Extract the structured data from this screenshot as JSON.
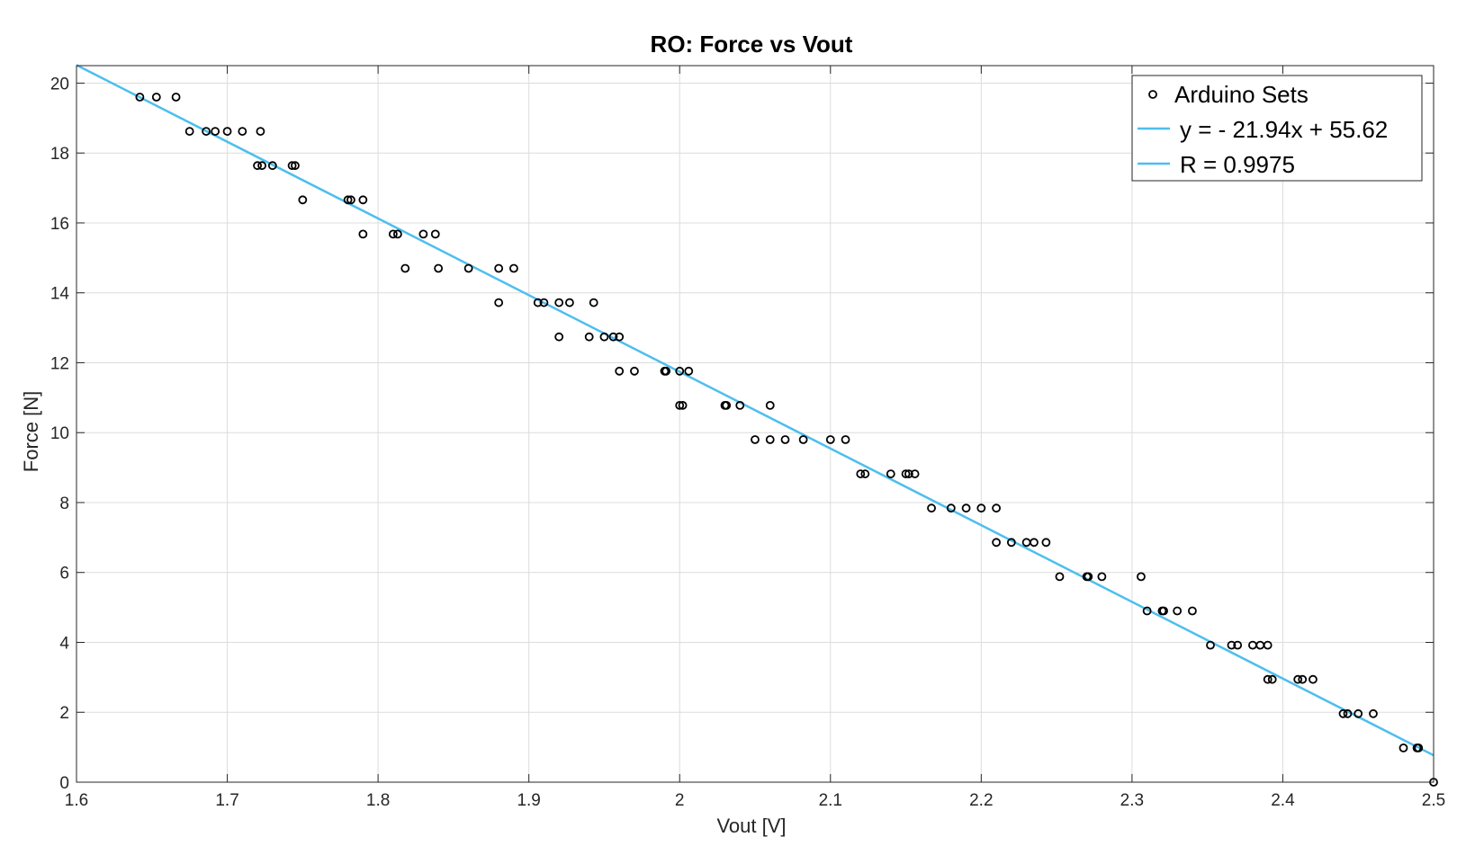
{
  "chart_data": {
    "type": "scatter",
    "title": "RO: Force vs Vout",
    "xlabel": "Vout [V]",
    "ylabel": "Force [N]",
    "xlim": [
      1.6,
      2.5
    ],
    "ylim": [
      0,
      20.5
    ],
    "xticks": [
      1.6,
      1.7,
      1.8,
      1.9,
      2.0,
      2.1,
      2.2,
      2.3,
      2.4,
      2.5
    ],
    "xtick_labels": [
      "1.6",
      "1.7",
      "1.8",
      "1.9",
      "2",
      "2.1",
      "2.2",
      "2.3",
      "2.4",
      "2.5"
    ],
    "yticks": [
      0,
      2,
      4,
      6,
      8,
      10,
      12,
      14,
      16,
      18,
      20
    ],
    "ytick_labels": [
      "0",
      "2",
      "4",
      "6",
      "8",
      "10",
      "12",
      "14",
      "16",
      "18",
      "20"
    ],
    "grid": true,
    "legend_position": "top-right",
    "colors": {
      "points": "#000000",
      "fit": "#4dbeee",
      "axes": "#262626",
      "grid": "#dcdcdc"
    },
    "series": [
      {
        "name": "Arduino Sets",
        "kind": "scatter",
        "points": [
          [
            1.642,
            19.6
          ],
          [
            1.653,
            19.6
          ],
          [
            1.666,
            19.6
          ],
          [
            1.675,
            18.62
          ],
          [
            1.686,
            18.62
          ],
          [
            1.692,
            18.62
          ],
          [
            1.7,
            18.62
          ],
          [
            1.71,
            18.62
          ],
          [
            1.722,
            18.62
          ],
          [
            1.72,
            17.64
          ],
          [
            1.723,
            17.64
          ],
          [
            1.73,
            17.64
          ],
          [
            1.743,
            17.64
          ],
          [
            1.745,
            17.64
          ],
          [
            1.75,
            16.66
          ],
          [
            1.78,
            16.66
          ],
          [
            1.782,
            16.66
          ],
          [
            1.79,
            16.66
          ],
          [
            1.79,
            15.68
          ],
          [
            1.81,
            15.68
          ],
          [
            1.813,
            15.68
          ],
          [
            1.83,
            15.68
          ],
          [
            1.838,
            15.68
          ],
          [
            1.818,
            14.7
          ],
          [
            1.84,
            14.7
          ],
          [
            1.86,
            14.7
          ],
          [
            1.88,
            14.7
          ],
          [
            1.89,
            14.7
          ],
          [
            1.88,
            13.72
          ],
          [
            1.906,
            13.72
          ],
          [
            1.91,
            13.72
          ],
          [
            1.92,
            13.72
          ],
          [
            1.927,
            13.72
          ],
          [
            1.943,
            13.72
          ],
          [
            1.92,
            12.74
          ],
          [
            1.94,
            12.74
          ],
          [
            1.95,
            12.74
          ],
          [
            1.956,
            12.74
          ],
          [
            1.96,
            12.74
          ],
          [
            1.96,
            11.76
          ],
          [
            1.97,
            11.76
          ],
          [
            1.99,
            11.76
          ],
          [
            1.991,
            11.76
          ],
          [
            2.0,
            11.76
          ],
          [
            2.006,
            11.76
          ],
          [
            2.0,
            10.78
          ],
          [
            2.002,
            10.78
          ],
          [
            2.03,
            10.78
          ],
          [
            2.031,
            10.78
          ],
          [
            2.04,
            10.78
          ],
          [
            2.06,
            10.78
          ],
          [
            2.05,
            9.8
          ],
          [
            2.06,
            9.8
          ],
          [
            2.07,
            9.8
          ],
          [
            2.082,
            9.8
          ],
          [
            2.1,
            9.8
          ],
          [
            2.11,
            9.8
          ],
          [
            2.12,
            8.82
          ],
          [
            2.123,
            8.82
          ],
          [
            2.14,
            8.82
          ],
          [
            2.15,
            8.82
          ],
          [
            2.152,
            8.82
          ],
          [
            2.156,
            8.82
          ],
          [
            2.167,
            7.84
          ],
          [
            2.18,
            7.84
          ],
          [
            2.19,
            7.84
          ],
          [
            2.2,
            7.84
          ],
          [
            2.21,
            7.84
          ],
          [
            2.21,
            6.86
          ],
          [
            2.22,
            6.86
          ],
          [
            2.23,
            6.86
          ],
          [
            2.235,
            6.86
          ],
          [
            2.243,
            6.86
          ],
          [
            2.252,
            5.88
          ],
          [
            2.27,
            5.88
          ],
          [
            2.271,
            5.88
          ],
          [
            2.28,
            5.88
          ],
          [
            2.306,
            5.88
          ],
          [
            2.31,
            4.9
          ],
          [
            2.32,
            4.9
          ],
          [
            2.321,
            4.9
          ],
          [
            2.33,
            4.9
          ],
          [
            2.34,
            4.9
          ],
          [
            2.352,
            3.92
          ],
          [
            2.366,
            3.92
          ],
          [
            2.37,
            3.92
          ],
          [
            2.38,
            3.92
          ],
          [
            2.385,
            3.92
          ],
          [
            2.39,
            3.92
          ],
          [
            2.39,
            2.94
          ],
          [
            2.393,
            2.94
          ],
          [
            2.41,
            2.94
          ],
          [
            2.413,
            2.94
          ],
          [
            2.42,
            2.94
          ],
          [
            2.44,
            1.96
          ],
          [
            2.443,
            1.96
          ],
          [
            2.45,
            1.96
          ],
          [
            2.46,
            1.96
          ],
          [
            2.48,
            0.98
          ],
          [
            2.489,
            0.98
          ],
          [
            2.49,
            0.98
          ],
          [
            2.5,
            0.0
          ]
        ]
      },
      {
        "name": "y = - 21.94x + 55.62",
        "kind": "line",
        "slope": -21.94,
        "intercept": 55.62
      },
      {
        "name": "R = 0.9975",
        "kind": "line"
      }
    ]
  }
}
